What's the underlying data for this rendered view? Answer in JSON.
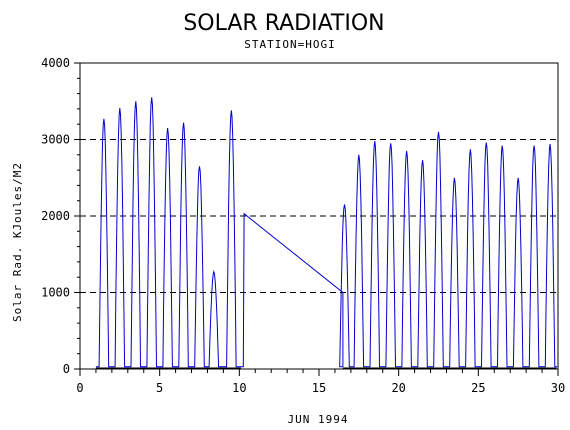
{
  "chart_data": {
    "type": "line",
    "title": "SOLAR RADIATION",
    "subtitle": "STATION=HOGI",
    "xlabel": "JUN 1994",
    "ylabel": "Solar Rad. KJoules/M2",
    "xlim": [
      0,
      30
    ],
    "ylim": [
      0,
      4000
    ],
    "x_ticks": [
      0,
      5,
      10,
      15,
      20,
      25,
      30
    ],
    "y_ticks": [
      0,
      1000,
      2000,
      3000,
      4000
    ],
    "grid": "horizontal-dashed",
    "series_color": "#0000cc",
    "daily_peaks": [
      {
        "day": 1.5,
        "value": 3270
      },
      {
        "day": 2.5,
        "value": 3410
      },
      {
        "day": 3.5,
        "value": 3500
      },
      {
        "day": 4.5,
        "value": 3550
      },
      {
        "day": 5.5,
        "value": 3150
      },
      {
        "day": 6.5,
        "value": 3220
      },
      {
        "day": 7.5,
        "value": 2650
      },
      {
        "day": 8.4,
        "value": 1270
      },
      {
        "day": 9.5,
        "value": 3380
      },
      {
        "day": 16.6,
        "value": 2150
      },
      {
        "day": 17.5,
        "value": 2800
      },
      {
        "day": 18.5,
        "value": 2980
      },
      {
        "day": 19.5,
        "value": 2950
      },
      {
        "day": 20.5,
        "value": 2850
      },
      {
        "day": 21.5,
        "value": 2730
      },
      {
        "day": 22.5,
        "value": 3100
      },
      {
        "day": 23.5,
        "value": 2500
      },
      {
        "day": 24.5,
        "value": 2870
      },
      {
        "day": 25.5,
        "value": 2960
      },
      {
        "day": 26.5,
        "value": 2920
      },
      {
        "day": 27.5,
        "value": 2500
      },
      {
        "day": 28.5,
        "value": 2920
      },
      {
        "day": 29.5,
        "value": 2940
      }
    ],
    "gap_line": {
      "start": {
        "day": 10.3,
        "value": 2030
      },
      "end": {
        "day": 16.5,
        "value": 1000
      }
    }
  }
}
